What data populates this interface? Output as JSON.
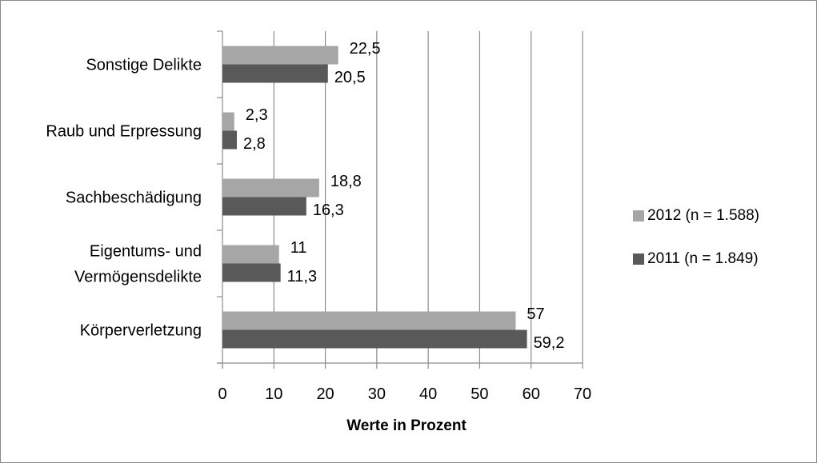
{
  "chart_data": {
    "type": "bar",
    "orientation": "horizontal",
    "categories": [
      "Körperverletzung",
      "Eigentums- und Vermögensdelikte",
      "Sachbeschädigung",
      "Raub und Erpressung",
      "Sonstige Delikte"
    ],
    "category_lines": [
      [
        "Körperverletzung"
      ],
      [
        "Eigentums- und",
        "Vermögensdelikte"
      ],
      [
        "Sachbeschädigung"
      ],
      [
        "Raub und Erpressung"
      ],
      [
        "Sonstige Delikte"
      ]
    ],
    "series": [
      {
        "name": "2012 (n = 1.588)",
        "color": "#a6a6a6",
        "values": [
          57,
          11,
          18.8,
          2.3,
          22.5
        ],
        "labels": [
          "57",
          "11",
          "18,8",
          "2,3",
          "22,5"
        ]
      },
      {
        "name": "2011 (n = 1.849)",
        "color": "#595959",
        "values": [
          59.2,
          11.3,
          16.3,
          2.8,
          20.5
        ],
        "labels": [
          "59,2",
          "11,3",
          "16,3",
          "2,8",
          "20,5"
        ]
      }
    ],
    "xlabel": "Werte in Prozent",
    "ylabel": "",
    "xlim": [
      0,
      70
    ],
    "xticks": [
      0,
      10,
      20,
      30,
      40,
      50,
      60,
      70
    ],
    "grid": "vertical",
    "legend": "right"
  }
}
